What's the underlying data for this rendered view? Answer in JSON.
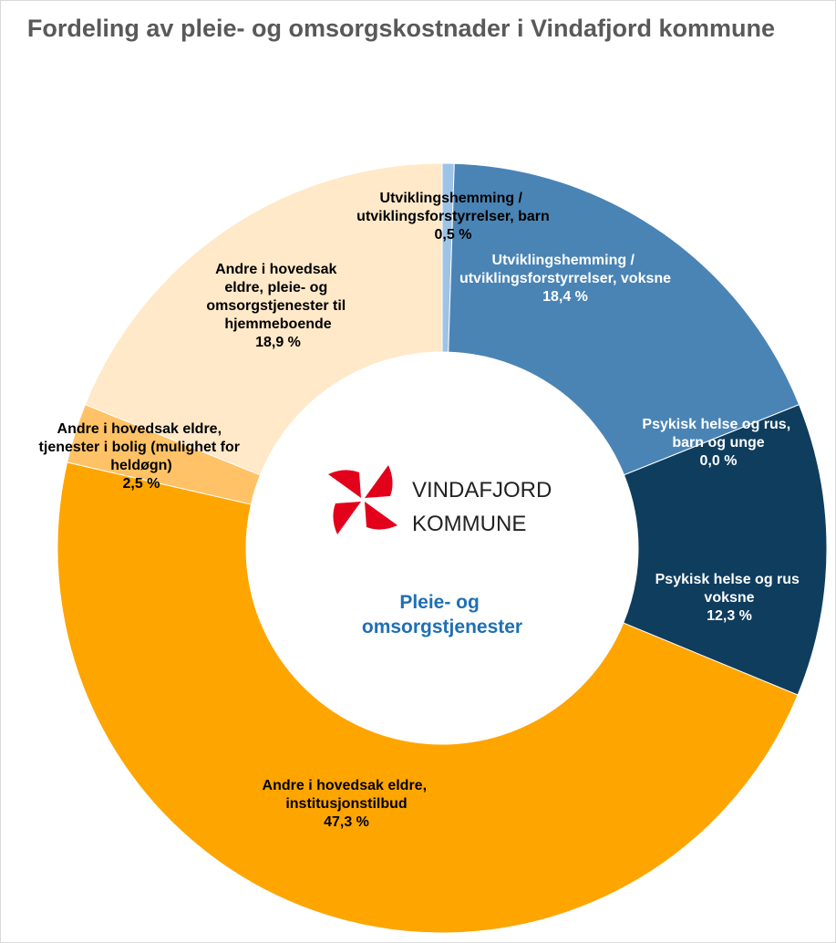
{
  "chart_data": {
    "type": "donut",
    "title": "Fordeling av pleie- og omsorgskostnader i Vindafjord kommune",
    "center_label": "Pleie- og omsorgstjenester",
    "logo_text": [
      "VINDAFJORD",
      "KOMMUNE"
    ],
    "categories": [
      "Utviklingshemming / utviklingsforstyrrelser, barn",
      "Utviklingshemming / utviklingsforstyrrelser, voksne",
      "Psykisk helse og rus, barn og unge",
      "Psykisk helse og rus voksne",
      "Andre i hovedsak eldre, institusjonstilbud",
      "Andre i hovedsak eldre, tjenester i bolig (mulighet for heldøgn)",
      "Andre i hovedsak eldre, pleie- og omsorgstjenester til hjemmeboende"
    ],
    "values": [
      0.5,
      18.4,
      0.0,
      12.3,
      47.3,
      2.5,
      18.9
    ],
    "value_labels": [
      "0,5 %",
      "18,4 %",
      "0,0 %",
      "12,3 %",
      "47,3 %",
      "2,5 %",
      "18,9 %"
    ],
    "colors": [
      "#9dc3e6",
      "#4a84b5",
      "#2e6a99",
      "#0f3d5e",
      "#ffa500",
      "#ffc266",
      "#ffe9c9"
    ]
  }
}
